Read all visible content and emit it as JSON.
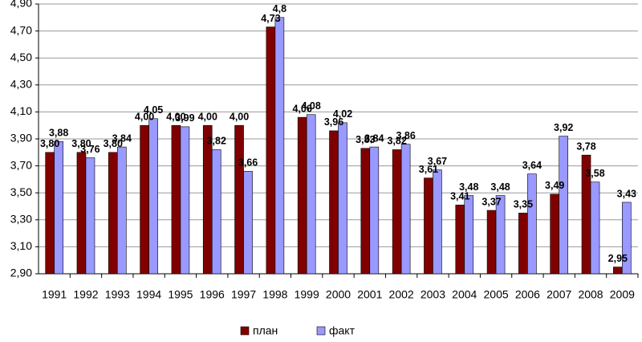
{
  "chart_data": {
    "type": "bar",
    "categories": [
      "1991",
      "1992",
      "1993",
      "1994",
      "1995",
      "1996",
      "1997",
      "1998",
      "1999",
      "2000",
      "2001",
      "2002",
      "2003",
      "2004",
      "2005",
      "2006",
      "2007",
      "2008",
      "2009"
    ],
    "series": [
      {
        "name": "план",
        "color": "#800000",
        "values": [
          3.8,
          3.8,
          3.8,
          4.0,
          4.0,
          4.0,
          4.0,
          4.73,
          4.06,
          3.96,
          3.83,
          3.82,
          3.61,
          3.41,
          3.37,
          3.35,
          3.49,
          3.78,
          2.95
        ],
        "value_labels": [
          "3,80",
          "3,80",
          "3,80",
          "4,00",
          "4,00",
          "4,00",
          "4,00",
          "4,73",
          "4,06",
          "3,96",
          "3,83",
          "3,82",
          "3,61",
          "3,41",
          "3,37",
          "3,35",
          "3,49",
          "3,78",
          "2,95"
        ]
      },
      {
        "name": "факт",
        "color": "#9999ff",
        "values": [
          3.88,
          3.76,
          3.84,
          4.05,
          3.99,
          3.82,
          3.66,
          4.8,
          4.08,
          4.02,
          3.84,
          3.86,
          3.67,
          3.48,
          3.48,
          3.64,
          3.92,
          3.58,
          3.43
        ],
        "value_labels": [
          "3,88",
          "3,76",
          "3,84",
          "4,05",
          "3,99",
          "3,82",
          "3,66",
          "4,8",
          "4,08",
          "4,02",
          "3,84",
          "3,86",
          "3,67",
          "3,48",
          "3,48",
          "3,64",
          "3,92",
          "3,58",
          "3,43"
        ]
      }
    ],
    "ylim": [
      2.9,
      4.9
    ],
    "yticks": [
      {
        "value": 2.9,
        "label": "2,90"
      },
      {
        "value": 3.1,
        "label": "3,10"
      },
      {
        "value": 3.3,
        "label": "3,30"
      },
      {
        "value": 3.5,
        "label": "3,50"
      },
      {
        "value": 3.7,
        "label": "3,70"
      },
      {
        "value": 3.9,
        "label": "3,90"
      },
      {
        "value": 4.1,
        "label": "4,10"
      },
      {
        "value": 4.3,
        "label": "4,30"
      },
      {
        "value": 4.5,
        "label": "4,50"
      },
      {
        "value": 4.7,
        "label": "4,70"
      },
      {
        "value": 4.9,
        "label": "4,90"
      }
    ],
    "grid": true,
    "legend": "bottom"
  }
}
